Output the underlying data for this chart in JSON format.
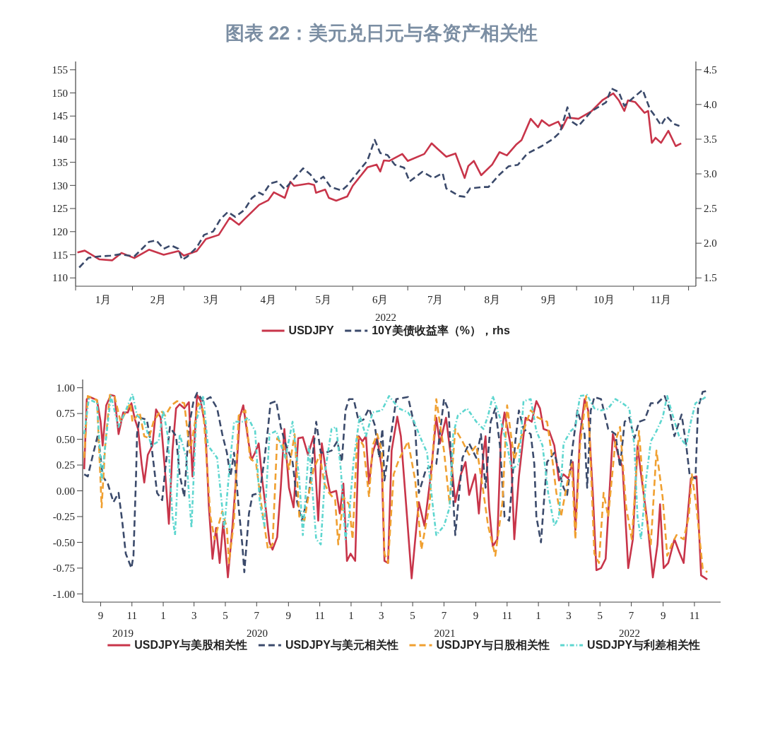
{
  "chart_data": [
    {
      "type": "line",
      "title": "图表 22：美元兑日元与各资产相关性",
      "xlabel": "2022",
      "legend": "bottom",
      "xlim": [
        "2022-01-01",
        "2022-12-05"
      ],
      "xticks": [
        {
          "value": "2022-01-01",
          "label": null
        },
        {
          "value": "2022-01-16",
          "label": "1月"
        },
        {
          "value": "2022-02-01",
          "label": null
        },
        {
          "value": "2022-02-15",
          "label": "2月"
        },
        {
          "value": "2022-03-01",
          "label": null
        },
        {
          "value": "2022-03-16",
          "label": "3月"
        },
        {
          "value": "2022-04-01",
          "label": null
        },
        {
          "value": "2022-04-16",
          "label": "4月"
        },
        {
          "value": "2022-05-01",
          "label": null
        },
        {
          "value": "2022-05-16",
          "label": "5月"
        },
        {
          "value": "2022-06-01",
          "label": null
        },
        {
          "value": "2022-06-16",
          "label": "6月"
        },
        {
          "value": "2022-07-01",
          "label": null
        },
        {
          "value": "2022-07-16",
          "label": "7月"
        },
        {
          "value": "2022-08-01",
          "label": null
        },
        {
          "value": "2022-08-16",
          "label": "8月"
        },
        {
          "value": "2022-09-01",
          "label": null
        },
        {
          "value": "2022-09-16",
          "label": "9月"
        },
        {
          "value": "2022-10-01",
          "label": null
        },
        {
          "value": "2022-10-16",
          "label": "10月"
        },
        {
          "value": "2022-11-01",
          "label": null
        },
        {
          "value": "2022-11-16",
          "label": "11月"
        },
        {
          "value": "2022-12-01",
          "label": null
        }
      ],
      "ylim": [
        108.2,
        156.8
      ],
      "yticks": [
        110,
        115,
        120,
        125,
        130,
        135,
        140,
        145,
        150,
        155
      ],
      "y2lim": [
        1.38,
        4.62
      ],
      "y2ticks": [
        1.5,
        {
          "value": 2,
          "label": "2.0"
        },
        2.5,
        {
          "value": 3,
          "label": "3.0"
        },
        3.5,
        {
          "value": 4,
          "label": "4.0"
        },
        4.5
      ],
      "series": [
        {
          "name": "USDJPY",
          "color": "#c8354a",
          "line_style": "solid",
          "x": [
            "2022-01-02",
            "2022-01-06",
            "2022-01-14",
            "2022-01-21",
            "2022-01-26",
            "2022-02-02",
            "2022-02-10",
            "2022-02-18",
            "2022-02-26",
            "2022-03-01",
            "2022-03-08",
            "2022-03-13",
            "2022-03-20",
            "2022-03-26",
            "2022-03-31",
            "2022-04-03",
            "2022-04-11",
            "2022-04-16",
            "2022-04-19",
            "2022-04-25",
            "2022-04-28",
            "2022-04-30",
            "2022-05-08",
            "2022-05-11",
            "2022-05-12",
            "2022-05-17",
            "2022-05-19",
            "2022-05-23",
            "2022-05-29",
            "2022-06-01",
            "2022-06-09",
            "2022-06-14",
            "2022-06-16",
            "2022-06-18",
            "2022-06-21",
            "2022-06-28",
            "2022-07-01",
            "2022-07-10",
            "2022-07-14",
            "2022-07-17",
            "2022-07-22",
            "2022-07-27",
            "2022-08-01",
            "2022-08-03",
            "2022-08-06",
            "2022-08-10",
            "2022-08-16",
            "2022-08-20",
            "2022-08-24",
            "2022-08-29",
            "2022-09-01",
            "2022-09-06",
            "2022-09-10",
            "2022-09-12",
            "2022-09-16",
            "2022-09-21",
            "2022-09-23",
            "2022-09-26",
            "2022-10-02",
            "2022-10-09",
            "2022-10-15",
            "2022-10-21",
            "2022-10-24",
            "2022-10-27",
            "2022-10-29",
            "2022-11-02",
            "2022-11-07",
            "2022-11-09",
            "2022-11-11",
            "2022-11-13",
            "2022-11-16",
            "2022-11-20",
            "2022-11-24",
            "2022-11-27"
          ],
          "values": [
            115.5,
            115.9,
            114.0,
            113.8,
            115.4,
            114.3,
            116.1,
            115.0,
            115.8,
            114.8,
            115.8,
            118.4,
            119.3,
            123.0,
            121.5,
            122.7,
            125.8,
            126.8,
            128.5,
            127.3,
            130.8,
            129.9,
            130.4,
            130.1,
            128.4,
            129.1,
            127.3,
            126.7,
            127.6,
            129.9,
            133.9,
            134.5,
            133.0,
            135.4,
            135.3,
            136.8,
            135.3,
            136.8,
            139.1,
            138.0,
            136.2,
            136.9,
            131.6,
            134.2,
            135.3,
            132.2,
            134.5,
            137.2,
            136.5,
            138.8,
            139.8,
            144.4,
            142.6,
            144.1,
            142.9,
            143.8,
            142.3,
            144.7,
            144.4,
            146.0,
            148.4,
            149.9,
            148.4,
            146.1,
            148.4,
            148.0,
            145.7,
            146.1,
            139.2,
            140.3,
            139.2,
            141.8,
            138.5,
            139.1
          ]
        },
        {
          "name": "10Y美债收益率（%），rhs",
          "color": "#3b4a6b",
          "line_style": "dashed",
          "axis": "y2",
          "x": [
            "2022-01-03",
            "2022-01-08",
            "2022-01-14",
            "2022-01-20",
            "2022-01-25",
            "2022-02-02",
            "2022-02-07",
            "2022-02-10",
            "2022-02-14",
            "2022-02-18",
            "2022-02-22",
            "2022-02-26",
            "2022-02-28",
            "2022-03-03",
            "2022-03-08",
            "2022-03-12",
            "2022-03-17",
            "2022-03-21",
            "2022-03-25",
            "2022-03-29",
            "2022-04-03",
            "2022-04-07",
            "2022-04-11",
            "2022-04-13",
            "2022-04-17",
            "2022-04-21",
            "2022-04-25",
            "2022-04-30",
            "2022-05-05",
            "2022-05-09",
            "2022-05-12",
            "2022-05-16",
            "2022-05-20",
            "2022-05-26",
            "2022-05-29",
            "2022-06-04",
            "2022-06-09",
            "2022-06-13",
            "2022-06-16",
            "2022-06-20",
            "2022-06-24",
            "2022-06-29",
            "2022-07-02",
            "2022-07-09",
            "2022-07-15",
            "2022-07-20",
            "2022-07-22",
            "2022-07-29",
            "2022-08-01",
            "2022-08-04",
            "2022-08-11",
            "2022-08-14",
            "2022-08-20",
            "2022-08-25",
            "2022-08-30",
            "2022-09-04",
            "2022-09-12",
            "2022-09-18",
            "2022-09-22",
            "2022-09-26",
            "2022-09-28",
            "2022-10-02",
            "2022-10-05",
            "2022-10-09",
            "2022-10-17",
            "2022-10-20",
            "2022-10-24",
            "2022-10-27",
            "2022-11-01",
            "2022-11-06",
            "2022-11-10",
            "2022-11-12",
            "2022-11-16",
            "2022-11-19",
            "2022-11-23",
            "2022-11-26"
          ],
          "values": [
            1.65,
            1.79,
            1.81,
            1.82,
            1.84,
            1.81,
            1.94,
            2.02,
            2.04,
            1.92,
            1.97,
            1.92,
            1.76,
            1.81,
            1.94,
            2.12,
            2.17,
            2.35,
            2.45,
            2.38,
            2.48,
            2.65,
            2.73,
            2.7,
            2.86,
            2.89,
            2.78,
            2.93,
            3.08,
            2.99,
            2.88,
            2.96,
            2.81,
            2.76,
            2.83,
            3.03,
            3.19,
            3.49,
            3.3,
            3.27,
            3.13,
            3.09,
            2.89,
            3.03,
            2.94,
            3.01,
            2.79,
            2.68,
            2.67,
            2.79,
            2.81,
            2.81,
            2.99,
            3.11,
            3.13,
            3.29,
            3.4,
            3.5,
            3.6,
            3.96,
            3.76,
            3.69,
            3.78,
            3.9,
            4.03,
            4.23,
            4.18,
            3.98,
            4.1,
            4.21,
            3.93,
            3.86,
            3.7,
            3.83,
            3.72,
            3.69
          ]
        }
      ]
    },
    {
      "type": "line",
      "legend": "bottom",
      "xlim": [
        "2019-07-28",
        "2022-12-22"
      ],
      "xticks": [
        {
          "value": "2019-09-01",
          "label": "9"
        },
        {
          "value": "2019-11-01",
          "label": "11"
        },
        {
          "value": "2020-01-01",
          "label": "1"
        },
        {
          "value": "2020-03-01",
          "label": "3"
        },
        {
          "value": "2020-05-01",
          "label": "5"
        },
        {
          "value": "2020-07-01",
          "label": "7"
        },
        {
          "value": "2020-09-01",
          "label": "9"
        },
        {
          "value": "2020-11-01",
          "label": "11"
        },
        {
          "value": "2021-01-01",
          "label": "1"
        },
        {
          "value": "2021-03-01",
          "label": "3"
        },
        {
          "value": "2021-05-01",
          "label": "5"
        },
        {
          "value": "2021-07-01",
          "label": "7"
        },
        {
          "value": "2021-09-01",
          "label": "9"
        },
        {
          "value": "2021-11-01",
          "label": "11"
        },
        {
          "value": "2022-01-01",
          "label": "1"
        },
        {
          "value": "2022-03-01",
          "label": "3"
        },
        {
          "value": "2022-05-01",
          "label": "5"
        },
        {
          "value": "2022-07-01",
          "label": "7"
        },
        {
          "value": "2022-09-01",
          "label": "9"
        },
        {
          "value": "2022-11-01",
          "label": "11"
        }
      ],
      "annotations": [
        "2019",
        "2020",
        "2021",
        "2022"
      ],
      "ylim": [
        -1.08,
        1.08
      ],
      "yticks": [
        {
          "value": -1,
          "label": "-1.00"
        },
        {
          "value": -0.75,
          "label": "-0.75"
        },
        {
          "value": -0.5,
          "label": "-0.50"
        },
        {
          "value": -0.25,
          "label": "-0.25"
        },
        {
          "value": 0,
          "label": "0.00"
        },
        {
          "value": 0.25,
          "label": "0.25"
        },
        {
          "value": 0.5,
          "label": "0.50"
        },
        {
          "value": 0.75,
          "label": "0.75"
        },
        {
          "value": 1,
          "label": "1.00"
        }
      ],
      "series": [
        {
          "name": "USDJPY与美股相关性",
          "color": "#c8354a",
          "line_style": "solid",
          "x": [
            "2019-07-31",
            "2019-08-05",
            "2019-08-11",
            "2019-08-25",
            "2019-09-01",
            "2019-09-05",
            "2019-09-12",
            "2019-09-21",
            "2019-09-28",
            "2019-10-06",
            "2019-10-15",
            "2019-10-24",
            "2019-10-31",
            "2019-11-07",
            "2019-11-13",
            "2019-11-20",
            "2019-11-25",
            "2019-12-02",
            "2019-12-11",
            "2019-12-18",
            "2019-12-27",
            "2020-01-05",
            "2020-01-12",
            "2020-01-19",
            "2020-01-26",
            "2020-02-02",
            "2020-02-11",
            "2020-02-20",
            "2020-02-27",
            "2020-03-07",
            "2020-03-14",
            "2020-03-23",
            "2020-03-30",
            "2020-04-06",
            "2020-04-13",
            "2020-04-20",
            "2020-04-27",
            "2020-05-06",
            "2020-05-15",
            "2020-05-22",
            "2020-05-29",
            "2020-06-05",
            "2020-06-14",
            "2020-06-21",
            "2020-06-28",
            "2020-07-05",
            "2020-07-12",
            "2020-07-19",
            "2020-07-26",
            "2020-08-01",
            "2020-08-10",
            "2020-08-17",
            "2020-08-24",
            "2020-09-02",
            "2020-09-11",
            "2020-09-20",
            "2020-09-29",
            "2020-10-09",
            "2020-10-20",
            "2020-10-29",
            "2020-11-05",
            "2020-11-14",
            "2020-11-21",
            "2020-12-03",
            "2020-12-10",
            "2020-12-17",
            "2020-12-24",
            "2020-12-31",
            "2021-01-09",
            "2021-01-16",
            "2021-01-23",
            "2021-01-30",
            "2021-02-05",
            "2021-02-12",
            "2021-02-21",
            "2021-03-02",
            "2021-03-07",
            "2021-03-14",
            "2021-03-21",
            "2021-04-01",
            "2021-04-08",
            "2021-04-20",
            "2021-04-29",
            "2021-05-06",
            "2021-05-13",
            "2021-05-24",
            "2021-06-05",
            "2021-06-16",
            "2021-06-23",
            "2021-07-05",
            "2021-07-14",
            "2021-07-23",
            "2021-08-03",
            "2021-08-12",
            "2021-08-19",
            "2021-08-31",
            "2021-09-07",
            "2021-09-16",
            "2021-09-20",
            "2021-09-27",
            "2021-10-04",
            "2021-10-13",
            "2021-10-20",
            "2021-10-27",
            "2021-11-08",
            "2021-11-15",
            "2021-11-24",
            "2021-12-07",
            "2021-12-19",
            "2021-12-28",
            "2022-01-04",
            "2022-01-11",
            "2022-01-22",
            "2022-02-01",
            "2022-02-10",
            "2022-02-19",
            "2022-02-28",
            "2022-03-09",
            "2022-03-14",
            "2022-03-23",
            "2022-04-01",
            "2022-04-08",
            "2022-04-17",
            "2022-04-24",
            "2022-05-03",
            "2022-05-12",
            "2022-05-26",
            "2022-06-07",
            "2022-06-14",
            "2022-06-25",
            "2022-07-04",
            "2022-07-13",
            "2022-07-20",
            "2022-08-01",
            "2022-08-12",
            "2022-08-21",
            "2022-08-26",
            "2022-09-02",
            "2022-09-11",
            "2022-09-23",
            "2022-10-02",
            "2022-10-11",
            "2022-10-25",
            "2022-11-05",
            "2022-11-14",
            "2022-11-26"
          ],
          "values": [
            0.21,
            0.89,
            0.91,
            0.88,
            0.67,
            0.44,
            0.83,
            0.93,
            0.92,
            0.55,
            0.76,
            0.76,
            0.85,
            0.69,
            0.6,
            0.26,
            0.08,
            0.35,
            0.44,
            0.79,
            0.71,
            0.16,
            -0.32,
            0.39,
            0.8,
            0.84,
            0.8,
            0.86,
            0.14,
            0.93,
            0.87,
            0.62,
            -0.16,
            -0.66,
            -0.36,
            -0.7,
            -0.3,
            -0.84,
            -0.34,
            0.14,
            0.71,
            0.83,
            0.51,
            0.3,
            0.37,
            0.46,
            0.1,
            -0.18,
            -0.5,
            -0.57,
            -0.45,
            0.03,
            0.6,
            0.03,
            -0.16,
            0.51,
            0.52,
            0.35,
            0.53,
            -0.29,
            0.46,
            0.16,
            -0.02,
            0.0,
            -0.22,
            0.07,
            -0.68,
            -0.61,
            -0.68,
            0.53,
            0.48,
            0.53,
            0.07,
            0.37,
            0.51,
            0.21,
            -0.68,
            -0.7,
            0.39,
            0.72,
            0.53,
            -0.25,
            -0.85,
            -0.47,
            -0.11,
            -0.34,
            0.14,
            0.71,
            0.46,
            0.71,
            0.35,
            -0.11,
            0.16,
            0.28,
            -0.04,
            0.16,
            -0.22,
            0.37,
            0.53,
            -0.16,
            -0.54,
            -0.47,
            0.53,
            0.76,
            0.44,
            -0.47,
            0.14,
            0.71,
            0.67,
            0.87,
            0.8,
            0.6,
            0.58,
            0.44,
            0.1,
            0.16,
            0.12,
            0.28,
            -0.38,
            0.53,
            0.89,
            0.78,
            -0.02,
            -0.77,
            -0.75,
            -0.66,
            0.55,
            0.32,
            0.23,
            -0.75,
            -0.47,
            0.44,
            0.16,
            -0.29,
            -0.84,
            -0.52,
            -0.13,
            -0.75,
            -0.7,
            -0.47,
            -0.59,
            -0.7,
            0.12,
            0.14,
            -0.82,
            -0.86
          ]
        },
        {
          "name": "USDJPY与美元相关性",
          "color": "#3b4a6b",
          "line_style": "dashed",
          "x": [
            "2019-07-31",
            "2019-08-07",
            "2019-08-18",
            "2019-08-27",
            "2019-09-05",
            "2019-09-15",
            "2019-09-26",
            "2019-10-06",
            "2019-10-13",
            "2019-10-20",
            "2019-10-31",
            "2019-11-04",
            "2019-11-09",
            "2019-11-11",
            "2019-11-16",
            "2019-11-30",
            "2019-12-09",
            "2019-12-20",
            "2019-12-30",
            "2020-01-05",
            "2020-01-14",
            "2020-01-26",
            "2020-02-02",
            "2020-02-11",
            "2020-02-20",
            "2020-02-29",
            "2020-03-07",
            "2020-03-19",
            "2020-04-02",
            "2020-04-15",
            "2020-04-25",
            "2020-05-04",
            "2020-05-11",
            "2020-05-18",
            "2020-05-27",
            "2020-06-03",
            "2020-06-07",
            "2020-06-16",
            "2020-06-23",
            "2020-07-07",
            "2020-07-16",
            "2020-07-23",
            "2020-07-28",
            "2020-08-08",
            "2020-08-17",
            "2020-08-26",
            "2020-09-09",
            "2020-09-18",
            "2020-09-27",
            "2020-10-11",
            "2020-10-25",
            "2020-11-03",
            "2020-11-12",
            "2020-11-24",
            "2020-12-05",
            "2020-12-14",
            "2020-12-21",
            "2020-12-28",
            "2021-01-06",
            "2021-01-16",
            "2021-01-25",
            "2021-02-05",
            "2021-02-16",
            "2021-02-25",
            "2021-03-03",
            "2021-03-07",
            "2021-03-30",
            "2021-04-22",
            "2021-05-06",
            "2021-05-13",
            "2021-05-27",
            "2021-06-16",
            "2021-07-01",
            "2021-07-10",
            "2021-07-17",
            "2021-07-23",
            "2021-08-06",
            "2021-08-19",
            "2021-09-02",
            "2021-09-11",
            "2021-09-20",
            "2021-09-30",
            "2021-10-09",
            "2021-10-18",
            "2021-10-27",
            "2021-11-05",
            "2021-11-17",
            "2021-11-24",
            "2021-12-03",
            "2021-12-17",
            "2021-12-24",
            "2021-12-28",
            "2022-01-06",
            "2022-01-13",
            "2022-01-18",
            "2022-02-01",
            "2022-02-08",
            "2022-02-19",
            "2022-02-26",
            "2022-03-09",
            "2022-03-18",
            "2022-04-01",
            "2022-04-06",
            "2022-04-13",
            "2022-04-20",
            "2022-05-03",
            "2022-05-17",
            "2022-05-31",
            "2022-06-09",
            "2022-06-18",
            "2022-06-27",
            "2022-07-07",
            "2022-07-16",
            "2022-07-27",
            "2022-08-08",
            "2022-08-21",
            "2022-09-04",
            "2022-09-13",
            "2022-09-23",
            "2022-10-07",
            "2022-10-16",
            "2022-10-23",
            "2022-11-03",
            "2022-11-08",
            "2022-11-17",
            "2022-11-26"
          ],
          "values": [
            0.16,
            0.14,
            0.37,
            0.55,
            0.14,
            0.07,
            -0.11,
            -0.02,
            -0.29,
            -0.61,
            -0.75,
            -0.63,
            0.14,
            0.55,
            0.71,
            0.69,
            0.44,
            -0.02,
            -0.09,
            0.21,
            0.62,
            0.53,
            0.16,
            -0.06,
            0.62,
            0.87,
            0.95,
            0.87,
            0.91,
            0.8,
            0.55,
            0.37,
            0.14,
            0.37,
            -0.16,
            -0.52,
            -0.79,
            -0.22,
            -0.04,
            -0.02,
            0.3,
            0.6,
            0.85,
            0.87,
            0.62,
            0.46,
            0.28,
            -0.11,
            -0.29,
            -0.02,
            0.67,
            0.37,
            0.37,
            0.39,
            0.48,
            0.28,
            0.78,
            0.89,
            0.89,
            0.67,
            0.69,
            0.8,
            0.64,
            0.32,
            0.6,
            0.1,
            0.89,
            0.91,
            0.6,
            -0.02,
            0.21,
            0.26,
            0.89,
            0.78,
            0.1,
            -0.43,
            0.32,
            0.46,
            0.32,
            0.55,
            0.03,
            0.67,
            0.8,
            0.44,
            -0.25,
            -0.29,
            0.48,
            0.78,
            0.6,
            0.55,
            0.26,
            -0.25,
            -0.5,
            -0.02,
            0.28,
            0.37,
            0.23,
            0.03,
            -0.04,
            0.44,
            0.78,
            0.55,
            0.03,
            0.78,
            0.91,
            0.89,
            0.6,
            0.55,
            0.23,
            0.67,
            0.71,
            0.51,
            0.67,
            0.69,
            0.85,
            0.85,
            0.92,
            0.8,
            0.53,
            0.74,
            0.44,
            0.14,
            0.12,
            0.8,
            0.96,
            0.97
          ]
        },
        {
          "name": "USDJPY与日股相关性",
          "color": "#f0a030",
          "line_style": "dashed",
          "x": [
            "2019-07-31",
            "2019-08-07",
            "2019-08-25",
            "2019-09-03",
            "2019-09-10",
            "2019-09-19",
            "2019-09-28",
            "2019-10-10",
            "2019-10-29",
            "2019-11-02",
            "2019-11-16",
            "2019-11-25",
            "2019-12-04",
            "2019-12-13",
            "2019-12-27",
            "2020-01-05",
            "2020-01-17",
            "2020-01-28",
            "2020-02-11",
            "2020-02-22",
            "2020-03-09",
            "2020-03-19",
            "2020-04-02",
            "2020-04-10",
            "2020-04-25",
            "2020-05-04",
            "2020-05-08",
            "2020-05-18",
            "2020-05-27",
            "2020-06-09",
            "2020-06-18",
            "2020-06-30",
            "2020-07-12",
            "2020-07-23",
            "2020-08-01",
            "2020-08-10",
            "2020-08-22",
            "2020-09-02",
            "2020-09-13",
            "2020-09-22",
            "2020-10-02",
            "2020-10-11",
            "2020-10-20",
            "2020-11-01",
            "2020-11-10",
            "2020-11-19",
            "2020-12-01",
            "2020-12-07",
            "2020-12-17",
            "2020-12-28",
            "2021-01-04",
            "2021-01-13",
            "2021-01-25",
            "2021-02-05",
            "2021-02-12",
            "2021-02-21",
            "2021-03-02",
            "2021-03-07",
            "2021-03-14",
            "2021-03-25",
            "2021-04-04",
            "2021-04-22",
            "2021-05-06",
            "2021-05-18",
            "2021-06-03",
            "2021-06-16",
            "2021-07-01",
            "2021-07-12",
            "2021-07-23",
            "2021-08-06",
            "2021-08-19",
            "2021-09-02",
            "2021-09-16",
            "2021-09-25",
            "2021-10-09",
            "2021-10-23",
            "2021-11-01",
            "2021-11-15",
            "2021-11-29",
            "2021-12-17",
            "2021-12-31",
            "2022-01-18",
            "2022-01-27",
            "2022-02-05",
            "2022-02-14",
            "2022-02-26",
            "2022-03-07",
            "2022-03-14",
            "2022-03-23",
            "2022-04-04",
            "2022-04-10",
            "2022-04-20",
            "2022-04-29",
            "2022-05-08",
            "2022-05-17",
            "2022-05-31",
            "2022-06-09",
            "2022-06-21",
            "2022-07-02",
            "2022-07-16",
            "2022-07-27",
            "2022-08-08",
            "2022-08-19",
            "2022-08-31",
            "2022-09-09",
            "2022-09-18",
            "2022-09-27",
            "2022-10-11",
            "2022-10-21",
            "2022-10-27",
            "2022-11-05",
            "2022-11-17",
            "2022-11-26"
          ],
          "values": [
            0.32,
            0.92,
            0.88,
            -0.16,
            0.44,
            0.93,
            0.92,
            0.67,
            0.85,
            0.67,
            0.76,
            0.53,
            0.51,
            0.67,
            0.78,
            0.73,
            0.83,
            0.87,
            0.85,
            0.37,
            0.85,
            0.78,
            -0.25,
            -0.47,
            -0.2,
            -0.36,
            -0.7,
            -0.29,
            0.73,
            0.78,
            0.32,
            0.26,
            -0.2,
            -0.57,
            -0.52,
            0.51,
            0.44,
            0.21,
            0.55,
            -0.25,
            -0.29,
            -0.02,
            0.21,
            0.35,
            0.07,
            -0.02,
            -0.09,
            -0.52,
            -0.06,
            -0.13,
            -0.47,
            0.53,
            0.44,
            -0.06,
            0.44,
            0.55,
            0.39,
            -0.61,
            -0.7,
            0.16,
            0.3,
            0.48,
            0.1,
            -0.57,
            -0.13,
            0.89,
            0.39,
            -0.13,
            0.6,
            0.48,
            0.35,
            0.44,
            -0.02,
            -0.34,
            -0.63,
            -0.11,
            0.83,
            0.3,
            0.53,
            0.78,
            0.71,
            0.67,
            0.35,
            -0.02,
            -0.25,
            0.07,
            0.26,
            -0.47,
            0.44,
            0.92,
            0.62,
            -0.61,
            -0.7,
            -0.02,
            -0.25,
            0.48,
            0.62,
            -0.16,
            -0.47,
            0.58,
            -0.16,
            -0.52,
            0.39,
            -0.06,
            -0.63,
            -0.52,
            -0.43,
            -0.47,
            -0.25,
            0.16,
            -0.16,
            -0.75,
            -0.79
          ]
        },
        {
          "name": "USDJPY与利差相关性",
          "color": "#5dd6cf",
          "line_style": "dotted",
          "x": [
            "2019-07-31",
            "2019-08-09",
            "2019-08-25",
            "2019-09-03",
            "2019-09-10",
            "2019-09-21",
            "2019-10-06",
            "2019-10-20",
            "2019-11-02",
            "2019-11-11",
            "2019-11-25",
            "2019-12-09",
            "2019-12-23",
            "2020-01-01",
            "2020-01-10",
            "2020-01-19",
            "2020-01-24",
            "2020-02-02",
            "2020-02-15",
            "2020-02-25",
            "2020-03-05",
            "2020-03-19",
            "2020-03-28",
            "2020-04-15",
            "2020-04-29",
            "2020-05-08",
            "2020-05-18",
            "2020-06-05",
            "2020-06-14",
            "2020-06-28",
            "2020-07-07",
            "2020-07-16",
            "2020-07-26",
            "2020-08-08",
            "2020-08-26",
            "2020-09-09",
            "2020-09-22",
            "2020-09-29",
            "2020-10-11",
            "2020-10-25",
            "2020-11-03",
            "2020-11-12",
            "2020-11-24",
            "2020-12-03",
            "2020-12-12",
            "2020-12-21",
            "2020-12-28",
            "2021-01-06",
            "2021-01-18",
            "2021-01-30",
            "2021-02-12",
            "2021-03-02",
            "2021-03-16",
            "2021-04-04",
            "2021-04-22",
            "2021-05-04",
            "2021-05-15",
            "2021-05-29",
            "2021-06-10",
            "2021-06-16",
            "2021-07-01",
            "2021-07-12",
            "2021-07-19",
            "2021-07-28",
            "2021-08-15",
            "2021-09-02",
            "2021-09-16",
            "2021-09-25",
            "2021-10-04",
            "2021-10-18",
            "2021-11-01",
            "2021-11-10",
            "2021-11-24",
            "2021-12-03",
            "2021-12-17",
            "2021-12-28",
            "2022-01-09",
            "2022-01-20",
            "2022-02-01",
            "2022-02-10",
            "2022-02-19",
            "2022-03-05",
            "2022-03-14",
            "2022-03-23",
            "2022-04-06",
            "2022-04-20",
            "2022-05-03",
            "2022-05-17",
            "2022-05-31",
            "2022-06-14",
            "2022-06-27",
            "2022-07-07",
            "2022-07-13",
            "2022-07-20",
            "2022-07-30",
            "2022-08-08",
            "2022-08-19",
            "2022-08-31",
            "2022-09-09",
            "2022-09-18",
            "2022-10-02",
            "2022-10-16",
            "2022-10-25",
            "2022-11-03",
            "2022-11-17",
            "2022-11-26"
          ],
          "values": [
            0.55,
            0.89,
            0.85,
            0.1,
            0.44,
            0.92,
            0.62,
            0.78,
            0.94,
            0.73,
            0.67,
            0.44,
            0.48,
            0.78,
            0.53,
            -0.25,
            -0.43,
            0.55,
            0.32,
            -0.36,
            0.67,
            0.92,
            0.44,
            0.32,
            -0.36,
            0.16,
            0.67,
            0.67,
            0.71,
            0.58,
            -0.11,
            -0.34,
            0.55,
            0.58,
            0.32,
            0.67,
            0.12,
            -0.43,
            0.44,
            -0.47,
            -0.52,
            0.21,
            0.6,
            0.62,
            0.21,
            -0.47,
            -0.25,
            0.3,
            0.73,
            0.53,
            0.76,
            0.78,
            0.92,
            0.8,
            0.76,
            0.67,
            0.53,
            0.37,
            -0.18,
            -0.43,
            -0.34,
            -0.16,
            0.55,
            0.73,
            0.8,
            0.67,
            0.6,
            0.73,
            0.92,
            0.71,
            0.44,
            0.21,
            0.26,
            0.87,
            0.89,
            0.58,
            0.44,
            -0.02,
            -0.34,
            -0.25,
            0.46,
            0.58,
            0.62,
            0.92,
            0.93,
            0.8,
            0.78,
            0.8,
            0.89,
            0.85,
            0.8,
            0.44,
            -0.25,
            -0.47,
            0.12,
            0.48,
            0.58,
            0.71,
            0.92,
            0.76,
            0.53,
            0.44,
            0.67,
            0.85,
            0.89,
            0.92
          ]
        }
      ]
    }
  ]
}
